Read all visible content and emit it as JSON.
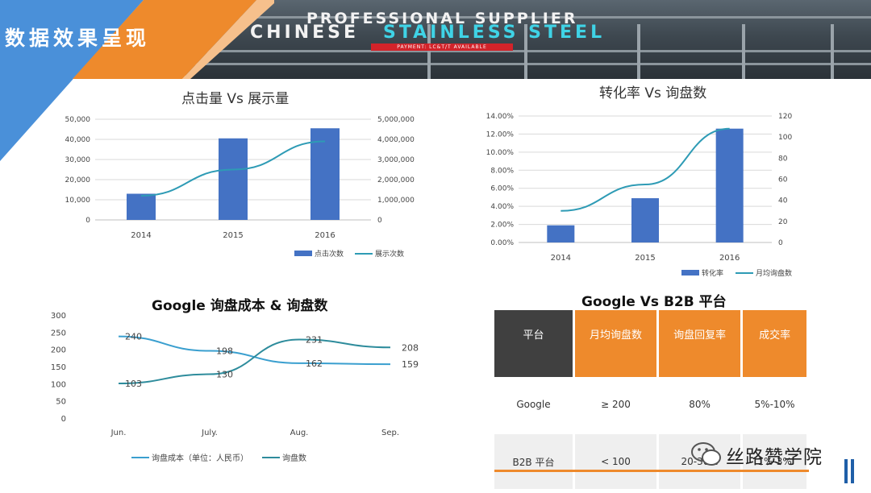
{
  "page": {
    "title": "数据效果呈现"
  },
  "banner": {
    "line1": "PROFESSIONAL SUPPLIER",
    "line2_white": "CHINESE",
    "line2_cyan": "STAINLESS STEEL",
    "payment": "PAYMENT: LC&T/T AVAILABLE"
  },
  "colors": {
    "bar": "#4472c4",
    "line": "#2e9bb5",
    "accent": "#ee8a2c",
    "header_dark": "#404040",
    "corner_blue": "#4a90d9"
  },
  "chart_data": [
    {
      "type": "bar",
      "title": "点击量 Vs 展示量",
      "categories": [
        "2014",
        "2015",
        "2016"
      ],
      "series": [
        {
          "name": "点击次数",
          "type": "bar",
          "axis": "left",
          "values": [
            13000,
            40500,
            45500
          ]
        },
        {
          "name": "展示次数",
          "type": "line",
          "axis": "right",
          "values": [
            1200000,
            2500000,
            3900000
          ]
        }
      ],
      "y_left": {
        "min": 0,
        "max": 50000,
        "ticks": [
          "0",
          "10,000",
          "20,000",
          "30,000",
          "40,000",
          "50,000"
        ]
      },
      "y_right": {
        "min": 0,
        "max": 5000000,
        "ticks": [
          "0",
          "1,000,000",
          "2,000,000",
          "3,000,000",
          "4,000,000",
          "5,000,000"
        ]
      },
      "legend": "bottom-right"
    },
    {
      "type": "bar",
      "title": "转化率 Vs 询盘数",
      "categories": [
        "2014",
        "2015",
        "2016"
      ],
      "series": [
        {
          "name": "转化率",
          "type": "bar",
          "axis": "left",
          "values": [
            0.019,
            0.049,
            0.126
          ]
        },
        {
          "name": "月均询盘数",
          "type": "line",
          "axis": "right",
          "values": [
            30,
            55,
            108
          ]
        }
      ],
      "y_left": {
        "min": 0,
        "max": 0.14,
        "ticks": [
          "0.00%",
          "2.00%",
          "4.00%",
          "6.00%",
          "8.00%",
          "10.00%",
          "12.00%",
          "14.00%"
        ]
      },
      "y_right": {
        "min": 0,
        "max": 120,
        "ticks": [
          "0",
          "20",
          "40",
          "60",
          "80",
          "100",
          "120"
        ]
      },
      "legend": "bottom-right"
    },
    {
      "type": "line",
      "title": "Google 询盘成本 & 询盘数",
      "categories": [
        "Jun.",
        "July.",
        "Aug.",
        "Sep."
      ],
      "series": [
        {
          "name": "询盘成本（单位：人民币）",
          "values": [
            240,
            198,
            162,
            159
          ],
          "labels": [
            "240",
            "198",
            "162",
            "159"
          ]
        },
        {
          "name": "询盘数",
          "values": [
            103,
            130,
            231,
            208
          ],
          "labels": [
            "103",
            "130",
            "231",
            "208"
          ]
        }
      ],
      "ylim": [
        0,
        300
      ],
      "ticks": [
        "0",
        "50",
        "100",
        "150",
        "200",
        "250",
        "300"
      ],
      "legend": "bottom-center"
    }
  ],
  "table": {
    "title": "Google Vs B2B 平台",
    "headers": [
      "平台",
      "月均询盘数",
      "询盘回复率",
      "成交率"
    ],
    "rows": [
      [
        "Google",
        "≥ 200",
        "80%",
        "5%-10%"
      ],
      [
        "B2B 平台",
        "< 100",
        "20-30%",
        "1%-3%"
      ]
    ]
  },
  "watermark": {
    "text": "丝路赞学院"
  }
}
